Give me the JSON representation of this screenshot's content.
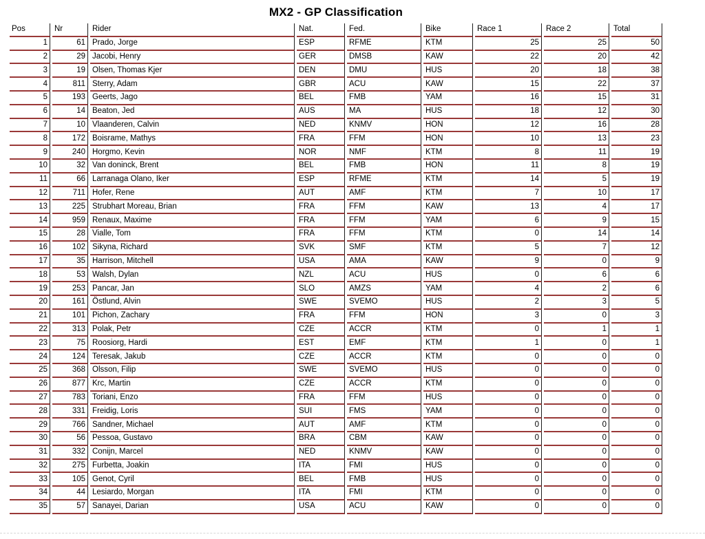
{
  "title": "MX2 - GP Classification",
  "colors": {
    "row_line": "#993837",
    "col_line": "#1b1b1b"
  },
  "table": {
    "columns": [
      "Pos",
      "Nr",
      "Rider",
      "Nat.",
      "Fed.",
      "Bike",
      "Race 1",
      "Race 2",
      "Total"
    ],
    "rows": [
      [
        1,
        61,
        "Prado, Jorge",
        "ESP",
        "RFME",
        "KTM",
        25,
        25,
        50
      ],
      [
        2,
        29,
        "Jacobi, Henry",
        "GER",
        "DMSB",
        "KAW",
        22,
        20,
        42
      ],
      [
        3,
        19,
        "Olsen, Thomas Kjer",
        "DEN",
        "DMU",
        "HUS",
        20,
        18,
        38
      ],
      [
        4,
        811,
        "Sterry, Adam",
        "GBR",
        "ACU",
        "KAW",
        15,
        22,
        37
      ],
      [
        5,
        193,
        "Geerts, Jago",
        "BEL",
        "FMB",
        "YAM",
        16,
        15,
        31
      ],
      [
        6,
        14,
        "Beaton, Jed",
        "AUS",
        "MA",
        "HUS",
        18,
        12,
        30
      ],
      [
        7,
        10,
        "Vlaanderen, Calvin",
        "NED",
        "KNMV",
        "HON",
        12,
        16,
        28
      ],
      [
        8,
        172,
        "Boisrame, Mathys",
        "FRA",
        "FFM",
        "HON",
        10,
        13,
        23
      ],
      [
        9,
        240,
        "Horgmo, Kevin",
        "NOR",
        "NMF",
        "KTM",
        8,
        11,
        19
      ],
      [
        10,
        32,
        "Van doninck, Brent",
        "BEL",
        "FMB",
        "HON",
        11,
        8,
        19
      ],
      [
        11,
        66,
        "Larranaga Olano, Iker",
        "ESP",
        "RFME",
        "KTM",
        14,
        5,
        19
      ],
      [
        12,
        711,
        "Hofer, Rene",
        "AUT",
        "AMF",
        "KTM",
        7,
        10,
        17
      ],
      [
        13,
        225,
        "Strubhart Moreau, Brian",
        "FRA",
        "FFM",
        "KAW",
        13,
        4,
        17
      ],
      [
        14,
        959,
        "Renaux, Maxime",
        "FRA",
        "FFM",
        "YAM",
        6,
        9,
        15
      ],
      [
        15,
        28,
        "Vialle, Tom",
        "FRA",
        "FFM",
        "KTM",
        0,
        14,
        14
      ],
      [
        16,
        102,
        "Sikyna, Richard",
        "SVK",
        "SMF",
        "KTM",
        5,
        7,
        12
      ],
      [
        17,
        35,
        "Harrison, Mitchell",
        "USA",
        "AMA",
        "KAW",
        9,
        0,
        9
      ],
      [
        18,
        53,
        "Walsh, Dylan",
        "NZL",
        "ACU",
        "HUS",
        0,
        6,
        6
      ],
      [
        19,
        253,
        "Pancar, Jan",
        "SLO",
        "AMZS",
        "YAM",
        4,
        2,
        6
      ],
      [
        20,
        161,
        "Östlund, Alvin",
        "SWE",
        "SVEMO",
        "HUS",
        2,
        3,
        5
      ],
      [
        21,
        101,
        "Pichon, Zachary",
        "FRA",
        "FFM",
        "HON",
        3,
        0,
        3
      ],
      [
        22,
        313,
        "Polak, Petr",
        "CZE",
        "ACCR",
        "KTM",
        0,
        1,
        1
      ],
      [
        23,
        75,
        "Roosiorg, Hardi",
        "EST",
        "EMF",
        "KTM",
        1,
        0,
        1
      ],
      [
        24,
        124,
        "Teresak, Jakub",
        "CZE",
        "ACCR",
        "KTM",
        0,
        0,
        0
      ],
      [
        25,
        368,
        "Olsson, Filip",
        "SWE",
        "SVEMO",
        "HUS",
        0,
        0,
        0
      ],
      [
        26,
        877,
        "Krc, Martin",
        "CZE",
        "ACCR",
        "KTM",
        0,
        0,
        0
      ],
      [
        27,
        783,
        "Toriani, Enzo",
        "FRA",
        "FFM",
        "HUS",
        0,
        0,
        0
      ],
      [
        28,
        331,
        "Freidig, Loris",
        "SUI",
        "FMS",
        "YAM",
        0,
        0,
        0
      ],
      [
        29,
        766,
        "Sandner, Michael",
        "AUT",
        "AMF",
        "KTM",
        0,
        0,
        0
      ],
      [
        30,
        56,
        "Pessoa, Gustavo",
        "BRA",
        "CBM",
        "KAW",
        0,
        0,
        0
      ],
      [
        31,
        332,
        "Conijn, Marcel",
        "NED",
        "KNMV",
        "KAW",
        0,
        0,
        0
      ],
      [
        32,
        275,
        "Furbetta, Joakin",
        "ITA",
        "FMI",
        "HUS",
        0,
        0,
        0
      ],
      [
        33,
        105,
        "Genot, Cyril",
        "BEL",
        "FMB",
        "HUS",
        0,
        0,
        0
      ],
      [
        34,
        44,
        "Lesiardo, Morgan",
        "ITA",
        "FMI",
        "KTM",
        0,
        0,
        0
      ],
      [
        35,
        57,
        "Sanayei, Darian",
        "USA",
        "ACU",
        "KAW",
        0,
        0,
        0
      ]
    ]
  }
}
